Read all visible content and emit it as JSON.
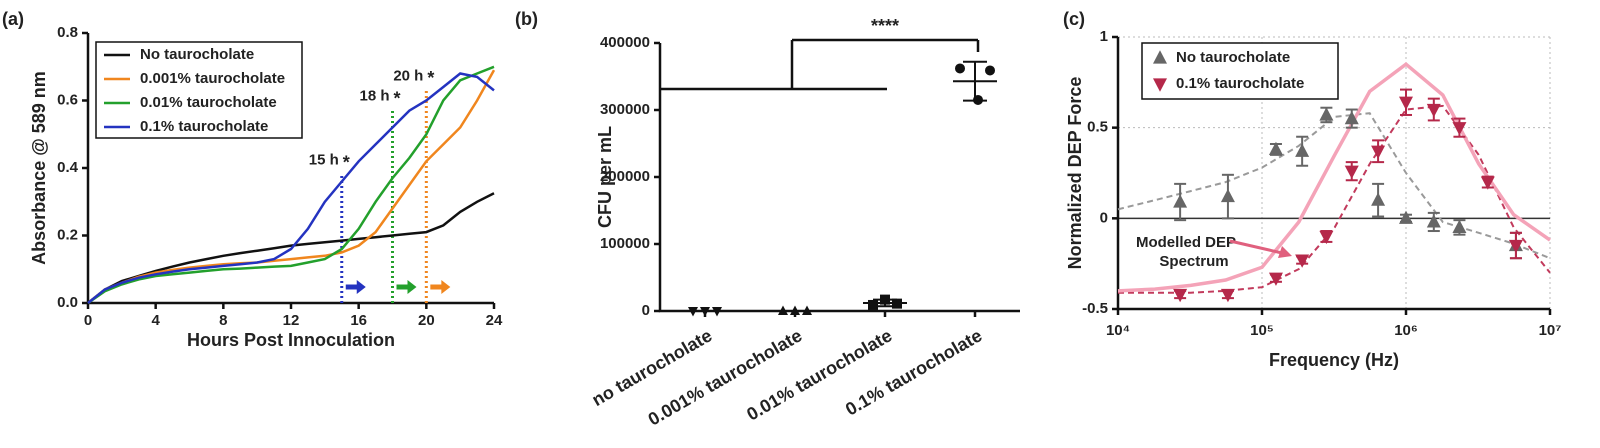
{
  "chart_data": [
    {
      "type": "line",
      "panel_label": "(a)",
      "x_label": "Hours Post Innoculation",
      "y_label": "Absorbance @ 589 nm",
      "x": [
        0,
        1,
        2,
        3,
        4,
        5,
        6,
        7,
        8,
        9,
        10,
        11,
        12,
        13,
        14,
        15,
        16,
        17,
        18,
        19,
        20,
        21,
        22,
        23,
        24
      ],
      "series": [
        {
          "name": "No taurocholate",
          "color": "#111111",
          "values": [
            0,
            0.04,
            0.065,
            0.08,
            0.095,
            0.108,
            0.12,
            0.13,
            0.14,
            0.148,
            0.155,
            0.162,
            0.17,
            0.175,
            0.18,
            0.185,
            0.19,
            0.195,
            0.2,
            0.205,
            0.21,
            0.23,
            0.27,
            0.3,
            0.325
          ]
        },
        {
          "name": "0.001% taurocholate",
          "color": "#f0861e",
          "values": [
            0,
            0.04,
            0.06,
            0.078,
            0.09,
            0.098,
            0.105,
            0.11,
            0.115,
            0.118,
            0.12,
            0.125,
            0.13,
            0.135,
            0.14,
            0.15,
            0.17,
            0.21,
            0.28,
            0.35,
            0.42,
            0.47,
            0.52,
            0.6,
            0.69
          ]
        },
        {
          "name": "0.01% taurocholate",
          "color": "#23a02c",
          "values": [
            0,
            0.035,
            0.055,
            0.07,
            0.08,
            0.085,
            0.09,
            0.095,
            0.1,
            0.102,
            0.105,
            0.108,
            0.11,
            0.12,
            0.13,
            0.16,
            0.22,
            0.3,
            0.37,
            0.43,
            0.5,
            0.6,
            0.66,
            0.68,
            0.7
          ]
        },
        {
          "name": "0.1% taurocholate",
          "color": "#2433c0",
          "values": [
            0,
            0.04,
            0.06,
            0.075,
            0.085,
            0.093,
            0.1,
            0.105,
            0.11,
            0.115,
            0.12,
            0.13,
            0.16,
            0.22,
            0.3,
            0.36,
            0.42,
            0.47,
            0.52,
            0.57,
            0.6,
            0.64,
            0.68,
            0.67,
            0.63
          ]
        }
      ],
      "xlim": [
        0,
        24
      ],
      "ylim": [
        0,
        0.8
      ],
      "xticks": [
        0,
        4,
        8,
        12,
        16,
        20,
        24
      ],
      "yticks": [
        {
          "value": 0,
          "label": "0.0"
        },
        0.2,
        0.4,
        0.6,
        0.8
      ],
      "legend": "upper left",
      "annotations": [
        {
          "x": 15,
          "y": 0.38,
          "label": "15 h",
          "symbol": "*",
          "color": "#2433c0"
        },
        {
          "x": 18,
          "y": 0.57,
          "label": "18 h",
          "symbol": "*",
          "color": "#23a02c"
        },
        {
          "x": 20,
          "y": 0.63,
          "label": "20 h",
          "symbol": "*",
          "color": "#f0861e"
        }
      ]
    },
    {
      "type": "dot",
      "panel_label": "(b)",
      "y_label": "CFU per mL",
      "categories": [
        "no taurocholate",
        "0.001% taurocholate",
        "0.01% taurocholate",
        "0.1% taurocholate"
      ],
      "points": [
        [
          0,
          0,
          0
        ],
        [
          0,
          0,
          0
        ],
        [
          9000,
          17000,
          11000
        ],
        [
          362000,
          315000,
          359000
        ]
      ],
      "means": [
        0,
        0,
        12000,
        343000
      ],
      "sd": [
        0,
        0,
        5000,
        29000
      ],
      "markers": [
        "triangle-down",
        "triangle-up",
        "square",
        "circle"
      ],
      "color": "#111111",
      "ylim": [
        0,
        400000
      ],
      "yticks": [
        0,
        100000,
        200000,
        300000,
        400000
      ],
      "significance": "****"
    },
    {
      "type": "scatter",
      "panel_label": "(c)",
      "x_label": "Frequency (Hz)",
      "y_label": "Normalized  DEP Force",
      "x": [
        27000,
        58000,
        125000,
        190000,
        280000,
        420000,
        640000,
        1000000,
        1560000,
        2350000,
        3700000,
        5800000
      ],
      "series": [
        {
          "name": "No taurocholate",
          "color": "#666666",
          "marker": "triangle-up",
          "values": [
            0.09,
            0.12,
            0.38,
            0.37,
            0.57,
            0.55,
            0.1,
            0,
            -0.02,
            -0.05,
            null,
            -0.15
          ],
          "errors": [
            0.1,
            0.12,
            0.03,
            0.08,
            0.04,
            0.05,
            0.09,
            0.02,
            0.05,
            0.04,
            null,
            0.07
          ]
        },
        {
          "name": "0.1% taurocholate",
          "color": "#b5284a",
          "marker": "triangle-down",
          "values": [
            -0.42,
            -0.42,
            -0.33,
            -0.23,
            -0.1,
            0.26,
            0.37,
            0.64,
            0.6,
            0.5,
            0.2,
            -0.15
          ],
          "errors": [
            0.02,
            0.02,
            0.02,
            0.02,
            0.03,
            0.05,
            0.06,
            0.07,
            0.06,
            0.05,
            0.03,
            0.07
          ]
        }
      ],
      "fit_x": [
        10000,
        18000,
        32000,
        56000,
        100000,
        180000,
        320000,
        560000,
        1000000,
        1800000,
        3200000,
        5600000,
        10000000
      ],
      "fits": [
        {
          "color": "#9a9a9a",
          "dashed": true,
          "values": [
            0.05,
            0.1,
            0.15,
            0.2,
            0.28,
            0.4,
            0.56,
            0.58,
            0.25,
            -0.02,
            -0.08,
            -0.14,
            -0.22
          ]
        },
        {
          "color": "#c23a5c",
          "dashed": true,
          "values": [
            -0.41,
            -0.41,
            -0.41,
            -0.4,
            -0.38,
            -0.28,
            -0.05,
            0.3,
            0.6,
            0.62,
            0.35,
            -0.05,
            -0.3
          ]
        },
        {
          "color": "#f4a3b8",
          "dashed": false,
          "values": [
            -0.4,
            -0.39,
            -0.37,
            -0.34,
            -0.27,
            -0.02,
            0.35,
            0.7,
            0.85,
            0.68,
            0.3,
            0.02,
            -0.12
          ]
        }
      ],
      "xscale": "log",
      "xlim": [
        10000,
        10000000
      ],
      "xticks": [
        {
          "value": 10000,
          "label": "10⁴"
        },
        {
          "value": 100000,
          "label": "10⁵"
        },
        {
          "value": 1000000,
          "label": "10⁶"
        },
        {
          "value": 10000000,
          "label": "10⁷"
        }
      ],
      "ylim": [
        -0.5,
        1
      ],
      "yticks": [
        -0.5,
        0,
        0.5,
        1
      ],
      "grid": true,
      "legend": "upper left",
      "annotation": {
        "lines": [
          "Modelled DEP",
          "Spectrum"
        ],
        "color": "#e0607e"
      }
    }
  ]
}
